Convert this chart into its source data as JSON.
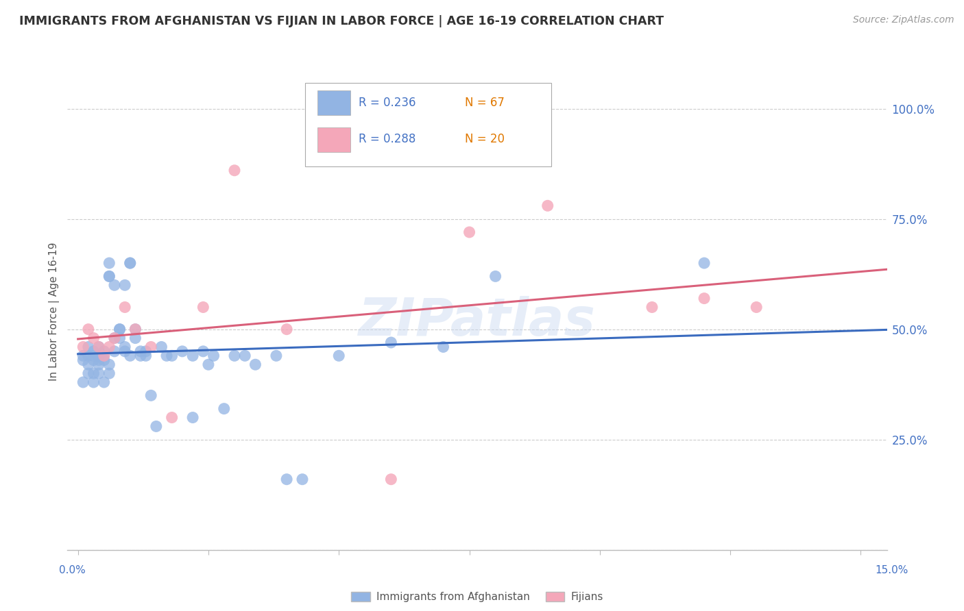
{
  "title": "IMMIGRANTS FROM AFGHANISTAN VS FIJIAN IN LABOR FORCE | AGE 16-19 CORRELATION CHART",
  "source": "Source: ZipAtlas.com",
  "ylabel": "In Labor Force | Age 16-19",
  "yticks": [
    0.0,
    0.25,
    0.5,
    0.75,
    1.0
  ],
  "ytick_labels": [
    "",
    "25.0%",
    "50.0%",
    "75.0%",
    "100.0%"
  ],
  "xticks": [
    0.0,
    0.025,
    0.05,
    0.075,
    0.1,
    0.125,
    0.15
  ],
  "xlim": [
    -0.002,
    0.155
  ],
  "ylim": [
    0.0,
    1.08
  ],
  "watermark": "ZIPatlas",
  "legend_r1": "R = 0.236",
  "legend_n1": "N = 67",
  "legend_r2": "R = 0.288",
  "legend_n2": "N = 20",
  "legend_label1": "Immigrants from Afghanistan",
  "legend_label2": "Fijians",
  "color_afghan": "#92b4e3",
  "color_fijian": "#f4a7b9",
  "color_line_afghan": "#3a6bbf",
  "color_line_fijian": "#d9607a",
  "color_text_blue": "#4472c4",
  "color_title": "#333333",
  "background_color": "#ffffff",
  "grid_color": "#cccccc",
  "afghan_x": [
    0.001,
    0.001,
    0.001,
    0.002,
    0.002,
    0.002,
    0.002,
    0.003,
    0.003,
    0.003,
    0.003,
    0.003,
    0.004,
    0.004,
    0.004,
    0.004,
    0.004,
    0.005,
    0.005,
    0.005,
    0.005,
    0.006,
    0.006,
    0.006,
    0.006,
    0.006,
    0.007,
    0.007,
    0.007,
    0.008,
    0.008,
    0.008,
    0.009,
    0.009,
    0.009,
    0.01,
    0.01,
    0.01,
    0.011,
    0.011,
    0.012,
    0.012,
    0.013,
    0.013,
    0.014,
    0.015,
    0.016,
    0.017,
    0.018,
    0.02,
    0.022,
    0.022,
    0.024,
    0.025,
    0.026,
    0.028,
    0.03,
    0.032,
    0.034,
    0.038,
    0.04,
    0.043,
    0.05,
    0.06,
    0.07,
    0.08,
    0.12
  ],
  "afghan_y": [
    0.43,
    0.44,
    0.38,
    0.44,
    0.4,
    0.46,
    0.42,
    0.43,
    0.44,
    0.45,
    0.4,
    0.38,
    0.42,
    0.43,
    0.46,
    0.4,
    0.44,
    0.44,
    0.43,
    0.38,
    0.45,
    0.4,
    0.62,
    0.62,
    0.65,
    0.42,
    0.45,
    0.48,
    0.6,
    0.5,
    0.48,
    0.5,
    0.46,
    0.6,
    0.45,
    0.65,
    0.65,
    0.44,
    0.5,
    0.48,
    0.45,
    0.44,
    0.44,
    0.45,
    0.35,
    0.28,
    0.46,
    0.44,
    0.44,
    0.45,
    0.44,
    0.3,
    0.45,
    0.42,
    0.44,
    0.32,
    0.44,
    0.44,
    0.42,
    0.44,
    0.16,
    0.16,
    0.44,
    0.47,
    0.46,
    0.62,
    0.65
  ],
  "fijian_x": [
    0.001,
    0.002,
    0.003,
    0.004,
    0.005,
    0.006,
    0.007,
    0.009,
    0.011,
    0.014,
    0.018,
    0.024,
    0.03,
    0.04,
    0.06,
    0.075,
    0.09,
    0.11,
    0.12,
    0.13
  ],
  "fijian_y": [
    0.46,
    0.5,
    0.48,
    0.46,
    0.44,
    0.46,
    0.48,
    0.55,
    0.5,
    0.46,
    0.3,
    0.55,
    0.86,
    0.5,
    0.16,
    0.72,
    0.78,
    0.55,
    0.57,
    0.55
  ]
}
